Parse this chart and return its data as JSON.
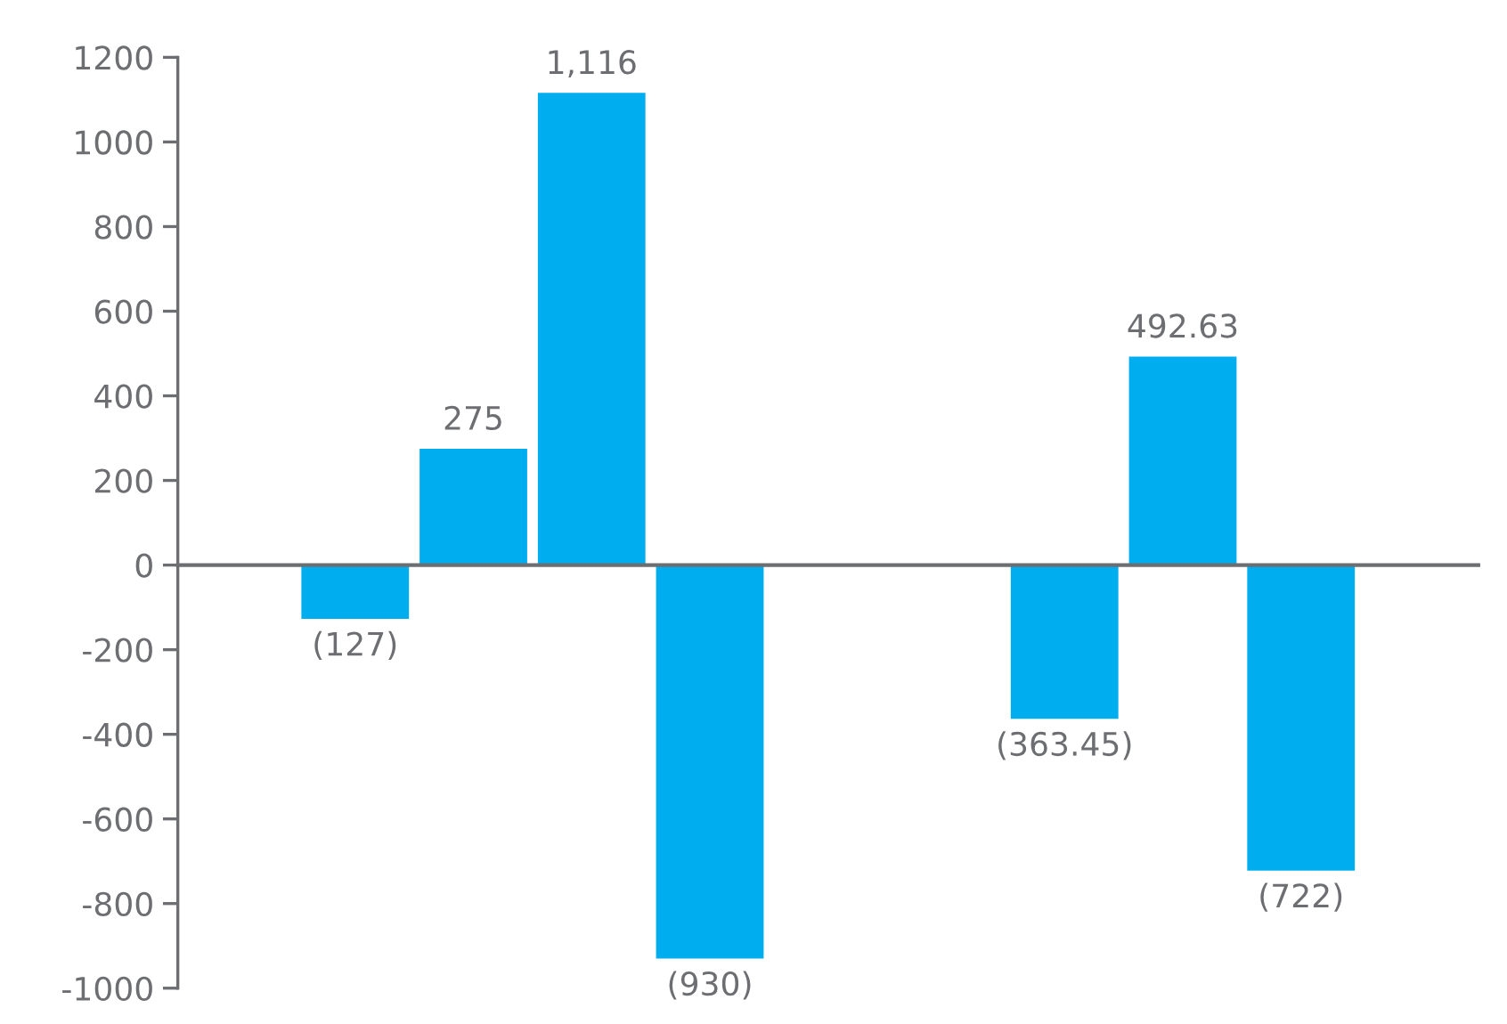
{
  "chart_data": {
    "type": "bar",
    "categories": [
      null,
      null,
      null,
      null,
      null,
      null,
      null,
      null,
      null,
      null,
      null
    ],
    "values": [
      null,
      -127,
      275,
      1116,
      -930,
      null,
      null,
      -363.45,
      492.63,
      -722,
      null
    ],
    "value_labels": [
      null,
      "(127)",
      "275",
      "1,116",
      "(930)",
      null,
      null,
      "(363.45)",
      "492.63",
      "(722)",
      null
    ],
    "color": "#00aeef",
    "ylim": [
      -1000,
      1200
    ],
    "yticks": [
      -1000,
      -800,
      -600,
      -400,
      -200,
      0,
      200,
      400,
      600,
      800,
      1000,
      1200
    ],
    "tick_labels": "y"
  }
}
